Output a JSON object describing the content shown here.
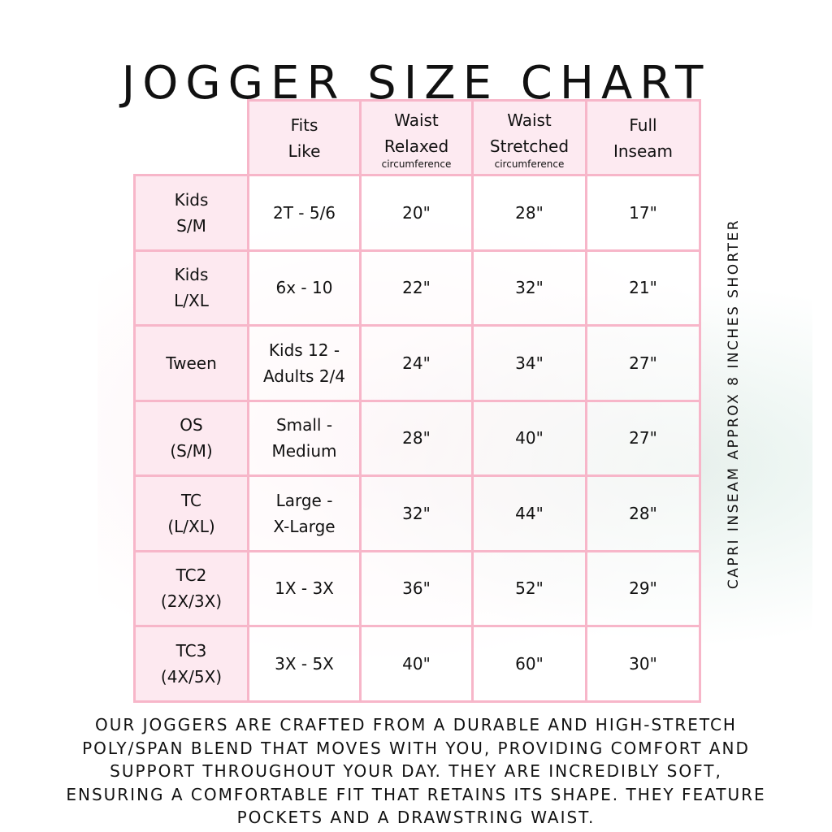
{
  "title": "JOGGER SIZE CHART",
  "headers": [
    {
      "line1": "Fits",
      "line2": "Like",
      "sub": ""
    },
    {
      "line1": "Waist",
      "line2": "Relaxed",
      "sub": "circumference"
    },
    {
      "line1": "Waist",
      "line2": "Stretched",
      "sub": "circumference"
    },
    {
      "line1": "Full",
      "line2": "Inseam",
      "sub": ""
    }
  ],
  "rows": [
    {
      "size1": "Kids",
      "size2": "S/M",
      "fits1": "2T - 5/6",
      "fits2": "",
      "relaxed": "20\"",
      "stretched": "28\"",
      "inseam": "17\""
    },
    {
      "size1": "Kids",
      "size2": "L/XL",
      "fits1": "6x - 10",
      "fits2": "",
      "relaxed": "22\"",
      "stretched": "32\"",
      "inseam": "21\""
    },
    {
      "size1": "Tween",
      "size2": "",
      "fits1": "Kids 12 -",
      "fits2": "Adults 2/4",
      "relaxed": "24\"",
      "stretched": "34\"",
      "inseam": "27\""
    },
    {
      "size1": "OS",
      "size2": "(S/M)",
      "fits1": "Small -",
      "fits2": "Medium",
      "relaxed": "28\"",
      "stretched": "40\"",
      "inseam": "27\""
    },
    {
      "size1": "TC",
      "size2": "(L/XL)",
      "fits1": "Large -",
      "fits2": "X-Large",
      "relaxed": "32\"",
      "stretched": "44\"",
      "inseam": "28\""
    },
    {
      "size1": "TC2",
      "size2": "(2X/3X)",
      "fits1": "1X - 3X",
      "fits2": "",
      "relaxed": "36\"",
      "stretched": "52\"",
      "inseam": "29\""
    },
    {
      "size1": "TC3",
      "size2": "(4X/5X)",
      "fits1": "3X - 5X",
      "fits2": "",
      "relaxed": "40\"",
      "stretched": "60\"",
      "inseam": "30\""
    }
  ],
  "side_note": "CAPRI INSEAM APPROX 8 INCHES SHORTER",
  "description_lines": [
    "OUR JOGGERS ARE CRAFTED FROM A DURABLE AND HIGH-STRETCH",
    "POLY/SPAN BLEND THAT MOVES WITH YOU, PROVIDING COMFORT AND",
    "SUPPORT THROUGHOUT YOUR DAY. THEY ARE INCREDIBLY SOFT,",
    "ENSURING A COMFORTABLE FIT THAT RETAINS ITS SHAPE. THEY FEATURE",
    "POCKETS AND A DRAWSTRING WAIST."
  ],
  "colors": {
    "border": "#f7b6c9",
    "header_fill": "#fde8ef"
  }
}
